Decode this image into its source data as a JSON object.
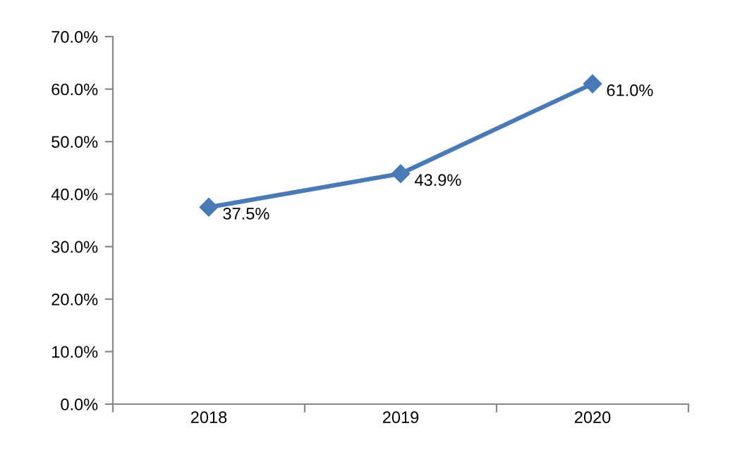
{
  "chart_data": {
    "type": "line",
    "categories": [
      "2018",
      "2019",
      "2020"
    ],
    "series": [
      {
        "color": "#4a7ab5",
        "values": [
          37.5,
          43.9,
          61.0
        ],
        "value_labels": [
          "37.5%",
          "43.9%",
          "61.0%"
        ]
      }
    ],
    "ylim": [
      0,
      70
    ],
    "yticks": [
      {
        "value": 0,
        "label": "0.0%"
      },
      {
        "value": 10,
        "label": "10.0%"
      },
      {
        "value": 20,
        "label": "20.0%"
      },
      {
        "value": 30,
        "label": "30.0%"
      },
      {
        "value": 40,
        "label": "40.0%"
      },
      {
        "value": 50,
        "label": "50.0%"
      },
      {
        "value": 60,
        "label": "60.0%"
      },
      {
        "value": 70,
        "label": "70.0%"
      }
    ],
    "marker": "diamond",
    "line_style": "solid"
  }
}
